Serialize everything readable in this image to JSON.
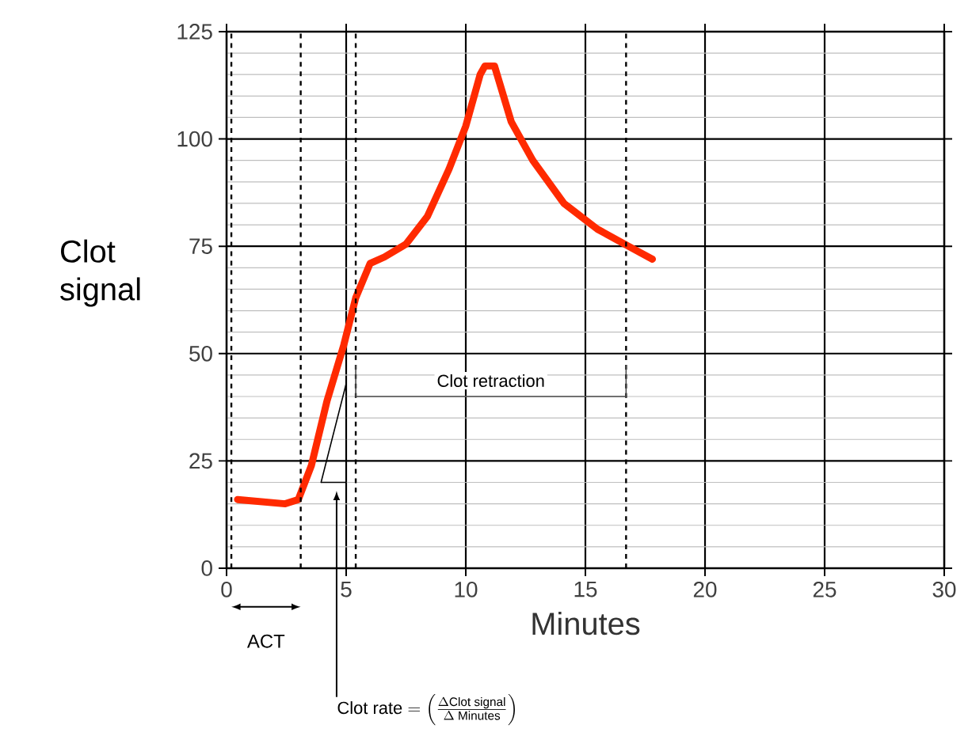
{
  "chart_data": {
    "type": "line",
    "xlabel": "Minutes",
    "ylabel": "Clot signal",
    "x": [
      0.46,
      2.45,
      3.0,
      3.55,
      4.2,
      4.9,
      5.4,
      6.0,
      6.6,
      7.5,
      8.4,
      9.3,
      10.0,
      10.6,
      10.8,
      11.2,
      11.9,
      12.8,
      14.1,
      15.5,
      16.8,
      17.8
    ],
    "series": [
      {
        "color": "#ff2a00",
        "values": [
          16,
          15,
          16,
          24,
          39,
          52,
          63,
          71,
          72.5,
          75.5,
          82,
          93,
          103,
          115,
          117,
          117,
          104,
          95,
          85,
          79,
          75,
          72
        ]
      },
      {
        "color": "#000000",
        "x": [
          3.95,
          5.0
        ],
        "values": [
          20,
          43
        ]
      }
    ],
    "xlim": [
      0,
      30
    ],
    "ylim": [
      0,
      125
    ],
    "xticks": [
      0,
      5,
      10,
      15,
      20,
      25,
      30
    ],
    "yticks": [
      0,
      25,
      50,
      75,
      100,
      125
    ],
    "grid": true,
    "marker": "none",
    "line_style": "solid",
    "ref_lines": [
      {
        "axis": "x",
        "value": 0.2,
        "line_style": "dashed"
      },
      {
        "axis": "x",
        "value": 3.1,
        "line_style": "dashed"
      },
      {
        "axis": "x",
        "value": 5.4,
        "line_style": "dashed"
      },
      {
        "axis": "x",
        "value": 16.7,
        "line_style": "dashed"
      }
    ],
    "annotations": [
      "ACT",
      "Clot retraction",
      "\\text{Clot rate} = \\left(\\frac{\\Delta\\text{Clot signal}}{\\Delta\\text{ Minutes}}\\right)"
    ]
  }
}
